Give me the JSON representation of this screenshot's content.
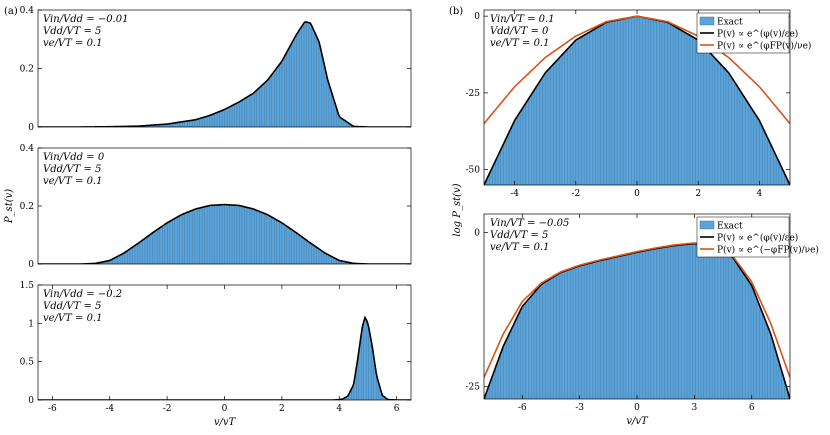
{
  "panel_labels": {
    "a": "(a)",
    "b": "(b)"
  },
  "colors": {
    "fill": "#5BA3D8",
    "fill_edge": "#2f5f80",
    "exact_curve": "#000000",
    "approx_curve": "#D95319"
  },
  "chart_data": [
    {
      "id": "a1",
      "type": "area",
      "panel": "a",
      "annotation": [
        "Vin/Vdd = −0.01",
        "Vdd/VT = 5",
        "ve/VT = 0.1"
      ],
      "xlim": [
        -6.5,
        6.5
      ],
      "ylim": [
        0,
        0.4
      ],
      "yticks": [
        0,
        0.2,
        0.4
      ],
      "ytick_labels": [
        "0",
        "0.2",
        "0.4"
      ],
      "xticks": [],
      "ylabel": "",
      "xlabel": "",
      "series": [
        {
          "x": [
            -6,
            -5,
            -4,
            -3,
            -2,
            -1,
            -0.5,
            0,
            0.5,
            1,
            1.5,
            2,
            2.5,
            2.8,
            3,
            3.3,
            3.6,
            4,
            4.5,
            5,
            6
          ],
          "y": [
            0,
            0,
            0.001,
            0.003,
            0.01,
            0.025,
            0.04,
            0.06,
            0.085,
            0.115,
            0.16,
            0.225,
            0.315,
            0.36,
            0.355,
            0.29,
            0.16,
            0.035,
            0.002,
            0,
            0
          ]
        }
      ]
    },
    {
      "id": "a2",
      "type": "area",
      "panel": "a",
      "annotation": [
        "Vin/Vdd = 0",
        "Vdd/VT = 5",
        "ve/VT = 0.1"
      ],
      "xlim": [
        -6.5,
        6.5
      ],
      "ylim": [
        0,
        0.4
      ],
      "yticks": [
        0,
        0.2,
        0.4
      ],
      "ytick_labels": [
        "0",
        "0.2",
        "0.4"
      ],
      "xticks": [],
      "ylabel": "P_st(v)",
      "xlabel": "",
      "series": [
        {
          "x": [
            -6,
            -5,
            -4.5,
            -4,
            -3.5,
            -3,
            -2.5,
            -2,
            -1.5,
            -1,
            -0.5,
            0,
            0.5,
            1,
            1.5,
            2,
            2.5,
            3,
            3.5,
            4,
            4.5,
            5,
            6
          ],
          "y": [
            0,
            0,
            0.002,
            0.012,
            0.038,
            0.072,
            0.108,
            0.142,
            0.17,
            0.19,
            0.202,
            0.205,
            0.202,
            0.19,
            0.17,
            0.142,
            0.108,
            0.072,
            0.038,
            0.012,
            0.002,
            0,
            0
          ]
        }
      ]
    },
    {
      "id": "a3",
      "type": "area",
      "panel": "a",
      "annotation": [
        "Vin/Vdd = −0.2",
        "Vdd/VT = 5",
        "ve/VT = 0.1"
      ],
      "xlim": [
        -6.5,
        6.5
      ],
      "ylim": [
        0,
        1.5
      ],
      "yticks": [
        0,
        0.5,
        1,
        1.5
      ],
      "ytick_labels": [
        "0",
        "0.5",
        "1",
        "1.5"
      ],
      "xticks": [
        -6,
        -4,
        -2,
        0,
        2,
        4,
        6
      ],
      "xtick_labels": [
        "-6",
        "-4",
        "-2",
        "0",
        "2",
        "4",
        "6"
      ],
      "ylabel": "",
      "xlabel": "v/vT",
      "series": [
        {
          "x": [
            -6,
            3.8,
            4.1,
            4.3,
            4.5,
            4.65,
            4.8,
            4.9,
            5.0,
            5.15,
            5.3,
            5.5,
            5.7,
            6
          ],
          "y": [
            0,
            0,
            0.01,
            0.05,
            0.2,
            0.55,
            0.95,
            1.08,
            1.0,
            0.7,
            0.32,
            0.06,
            0.005,
            0
          ]
        }
      ]
    },
    {
      "id": "b1",
      "type": "area",
      "panel": "b",
      "annotation": [
        "Vin/VT = 0.1",
        "Vdd/VT = 0",
        "ve/VT = 0.1"
      ],
      "xlim": [
        -5,
        5
      ],
      "ylim": [
        -55,
        2
      ],
      "yticks": [
        -50,
        -25,
        0
      ],
      "ytick_labels": [
        "-50",
        "-25",
        "0"
      ],
      "xticks": [
        -4,
        -2,
        0,
        2,
        4
      ],
      "xtick_labels": [
        "-4",
        "-2",
        "0",
        "2",
        "4"
      ],
      "ylabel": "",
      "xlabel": "",
      "legend": [
        "Exact",
        "P(v) ∝ e^(φ(v)/εe)",
        "P(v) ∝ e^(φFP(v)/νe)"
      ],
      "legend_position": "top-right",
      "series": [
        {
          "name": "Exact",
          "role": "fill",
          "x": [
            -5,
            -4,
            -3,
            -2,
            -1,
            0,
            1,
            2,
            3,
            4,
            5
          ],
          "y": [
            -55,
            -34,
            -18.5,
            -7.8,
            -2,
            0,
            -2,
            -7.8,
            -18.5,
            -34,
            -55
          ]
        },
        {
          "name": "P(v) ∝ e^(φ(v)/εe)",
          "role": "exact",
          "x": [
            -5,
            -4,
            -3,
            -2,
            -1,
            0,
            1,
            2,
            3,
            4,
            5
          ],
          "y": [
            -55,
            -34,
            -18.5,
            -7.8,
            -2,
            0,
            -2,
            -7.8,
            -18.5,
            -34,
            -55
          ]
        },
        {
          "name": "P(v) ∝ e^(φFP(v)/νe)",
          "role": "approx",
          "x": [
            -5,
            -4,
            -3,
            -2,
            -1,
            0,
            1,
            2,
            3,
            4,
            5
          ],
          "y": [
            -35,
            -23,
            -13.5,
            -6.5,
            -1.8,
            0,
            -1.8,
            -6.5,
            -13.5,
            -23,
            -35
          ]
        }
      ]
    },
    {
      "id": "b2",
      "type": "area",
      "panel": "b",
      "annotation": [
        "Vin/VT = −0.05",
        "Vdd/VT = 5",
        "ve/VT = 0.1"
      ],
      "xlim": [
        -8,
        8
      ],
      "ylim": [
        -27,
        3
      ],
      "yticks": [
        -25,
        0
      ],
      "ytick_labels": [
        "-25",
        "0"
      ],
      "xticks": [
        -6,
        -3,
        0,
        3,
        6
      ],
      "xtick_labels": [
        "-6",
        "-3",
        "0",
        "3",
        "6"
      ],
      "ylabel": "log P_st(v)",
      "xlabel": "v/vT",
      "legend": [
        "Exact",
        "P(v) ∝ e^(φ(v)/εe)",
        "P(v) ∝ e^(−φFP(v)/νe)"
      ],
      "legend_position": "top-right",
      "series": [
        {
          "name": "Exact",
          "role": "fill",
          "x": [
            -8,
            -7,
            -6,
            -5,
            -4,
            -3,
            -2,
            -1,
            0,
            1,
            2,
            3,
            4,
            5,
            6,
            7,
            8
          ],
          "y": [
            -27,
            -18.5,
            -12,
            -8.4,
            -6.5,
            -5.4,
            -4.6,
            -3.9,
            -3.2,
            -2.6,
            -2.1,
            -1.8,
            -2.1,
            -4,
            -8.6,
            -16.5,
            -27
          ]
        },
        {
          "name": "P(v) ∝ e^(φ(v)/εe)",
          "role": "exact",
          "x": [
            -8,
            -7,
            -6,
            -5,
            -4,
            -3,
            -2,
            -1,
            0,
            1,
            2,
            3,
            4,
            5,
            6,
            7,
            8
          ],
          "y": [
            -27,
            -18.5,
            -12,
            -8.4,
            -6.5,
            -5.4,
            -4.6,
            -3.9,
            -3.2,
            -2.6,
            -2.1,
            -1.8,
            -2.1,
            -4,
            -8.6,
            -16.5,
            -27
          ]
        },
        {
          "name": "P(v) ∝ e^(−φFP(v)/νe)",
          "role": "approx",
          "x": [
            -8,
            -7,
            -6,
            -5,
            -4,
            -3,
            -2,
            -1,
            0,
            1,
            2,
            3,
            4,
            5,
            6,
            7,
            8
          ],
          "y": [
            -23.5,
            -16.5,
            -11.2,
            -8.2,
            -6.4,
            -5.3,
            -4.5,
            -3.8,
            -3.1,
            -2.5,
            -2.0,
            -1.7,
            -2.0,
            -3.8,
            -8.0,
            -14.8,
            -23.5
          ]
        }
      ]
    }
  ]
}
